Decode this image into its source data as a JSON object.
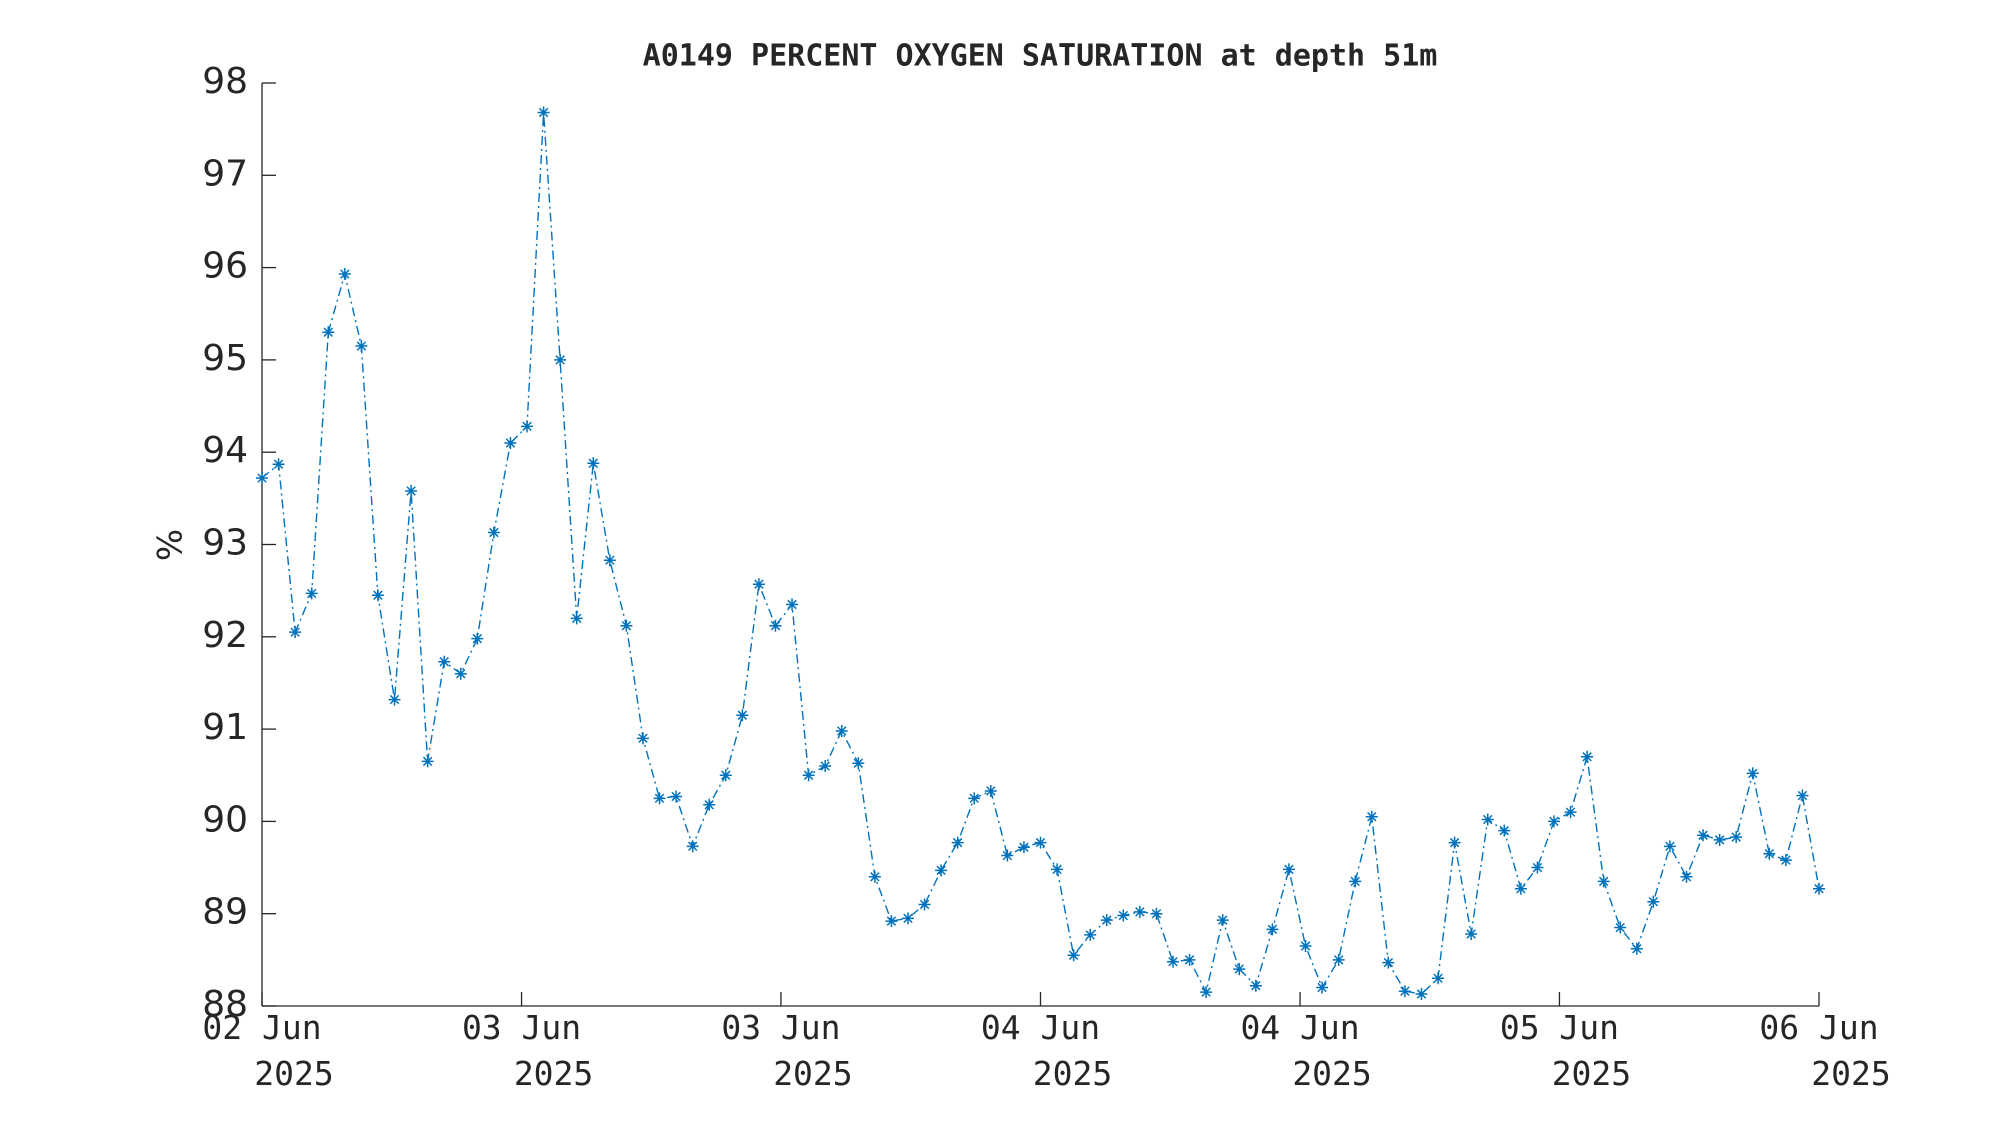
{
  "chart_data": {
    "type": "line",
    "title": "A0149 PERCENT OXYGEN SATURATION at depth 51m",
    "y_label": "%",
    "color": "#0072bd",
    "values": [
      93.72,
      93.87,
      92.05,
      92.47,
      95.3,
      95.93,
      95.15,
      92.45,
      91.32,
      93.58,
      90.65,
      91.73,
      91.6,
      91.98,
      93.13,
      94.1,
      94.28,
      97.68,
      95.0,
      92.2,
      93.88,
      92.83,
      92.12,
      90.9,
      90.25,
      90.27,
      89.73,
      90.18,
      90.5,
      91.15,
      92.57,
      92.12,
      92.35,
      90.5,
      90.6,
      90.98,
      90.63,
      89.4,
      88.92,
      88.95,
      89.1,
      89.47,
      89.77,
      90.25,
      90.33,
      89.63,
      89.72,
      89.77,
      89.48,
      88.55,
      88.77,
      88.93,
      88.98,
      89.02,
      89.0,
      88.48,
      88.5,
      88.15,
      88.93,
      88.4,
      88.22,
      88.83,
      89.48,
      88.65,
      88.2,
      88.5,
      89.35,
      90.05,
      88.47,
      88.16,
      88.13,
      88.3,
      89.77,
      88.78,
      90.02,
      89.9,
      89.27,
      89.5,
      90.0,
      90.1,
      90.7,
      89.35,
      88.85,
      88.62,
      89.13,
      89.73,
      89.4,
      89.85,
      89.8,
      89.83,
      90.52,
      89.65,
      89.58,
      90.28,
      89.27
    ],
    "xlim": [
      0,
      94
    ],
    "xticks": [
      {
        "value": 0,
        "label": "02 Jun 2025"
      },
      {
        "value": 15.67,
        "label": "03 Jun 2025"
      },
      {
        "value": 31.33,
        "label": "03 Jun 2025"
      },
      {
        "value": 47,
        "label": "04 Jun 2025"
      },
      {
        "value": 62.67,
        "label": "04 Jun 2025"
      },
      {
        "value": 78.33,
        "label": "05 Jun 2025"
      },
      {
        "value": 94,
        "label": "06 Jun 2025"
      }
    ],
    "ylim": [
      88,
      98
    ],
    "yticks": [
      88,
      89,
      90,
      91,
      92,
      93,
      94,
      95,
      96,
      97,
      98
    ],
    "grid": false
  }
}
